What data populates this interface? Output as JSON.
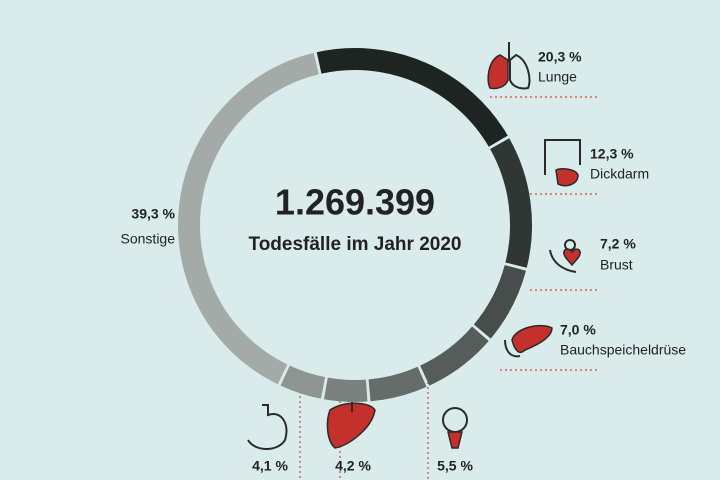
{
  "chart_data": {
    "type": "donut",
    "center_value": "1.269.399",
    "center_caption": "Todesfälle im Jahr 2020",
    "categories": [
      "Lunge",
      "Dickdarm",
      "Brust",
      "Bauchspeicheldrüse",
      null,
      null,
      null,
      "Sonstige"
    ],
    "values": [
      20.3,
      12.3,
      7.2,
      7.0,
      5.5,
      4.2,
      4.1,
      39.3
    ],
    "value_labels": [
      "20,3 %",
      "12,3 %",
      "7,2 %",
      "7,0 %",
      "5,5 %",
      "4,2 %",
      "4,1 %",
      "39,3 %"
    ],
    "colors": [
      "#1d2422",
      "#2f3634",
      "#464d4b",
      "#555c5a",
      "#656c6a",
      "#7a817f",
      "#8d9491",
      "#a3aaa7"
    ]
  }
}
